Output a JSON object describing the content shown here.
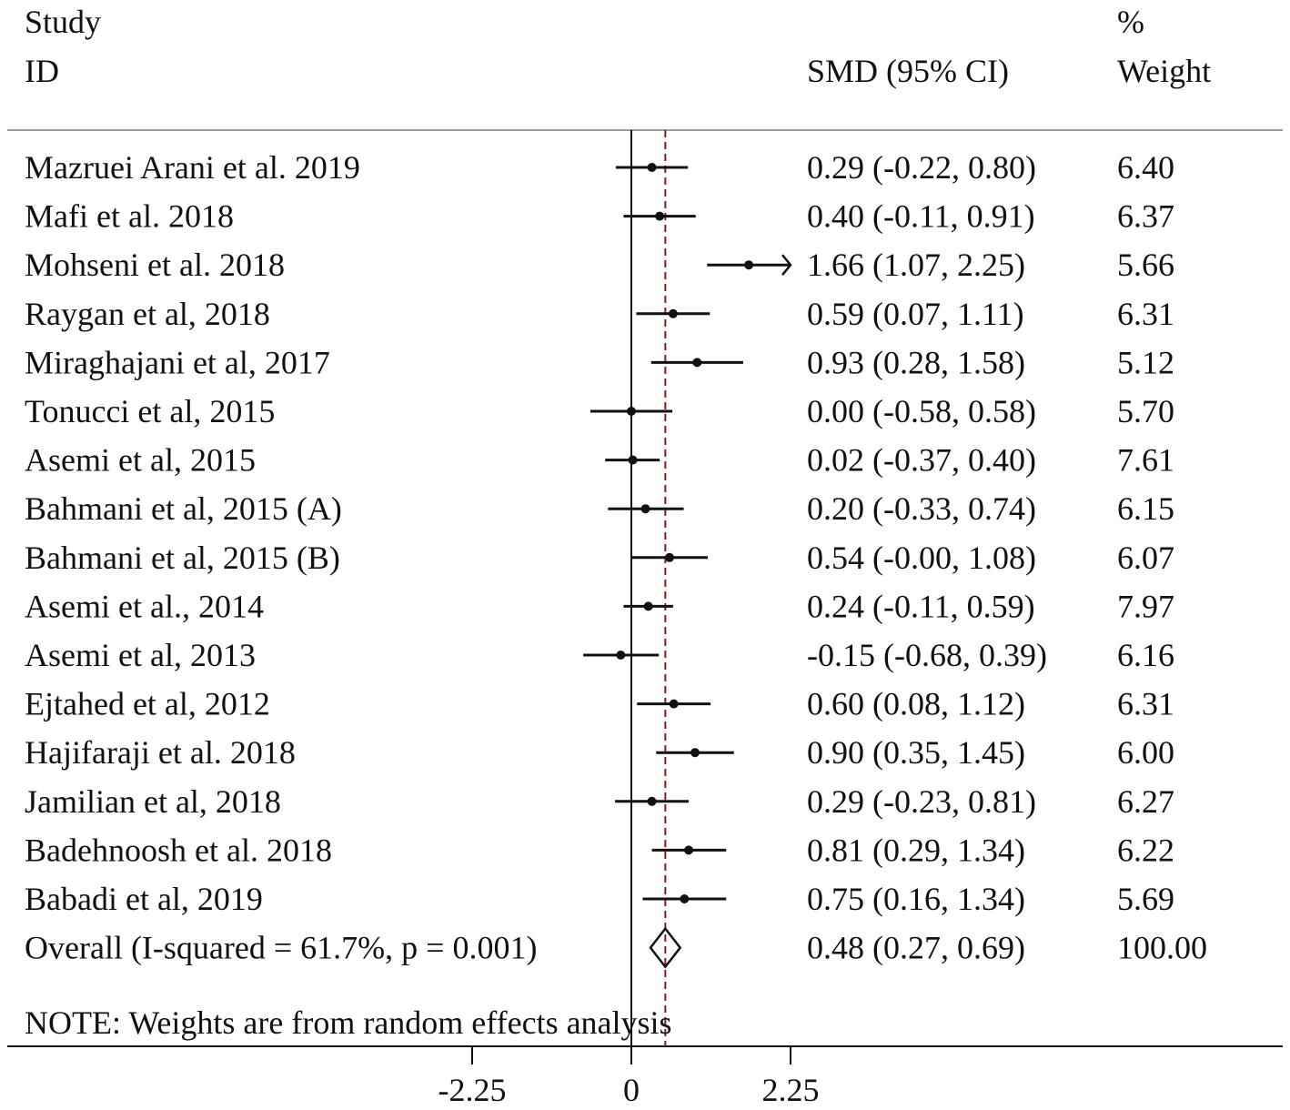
{
  "header": {
    "study_line1": "Study",
    "study_line2": "ID",
    "effect_header": "SMD (95% CI)",
    "weight_line1": "%",
    "weight_line2": "Weight"
  },
  "note": "NOTE: Weights are from random effects analysis",
  "colors": {
    "ink": "#111111",
    "reference_line": "#8b1a1a",
    "rule": "#999999"
  },
  "chart_data": {
    "type": "forest",
    "xlabel": "",
    "ylabel": "",
    "xlim": [
      -2.25,
      2.25
    ],
    "xticks": [
      "-2.25",
      "0",
      "2.25"
    ],
    "null_line": 0,
    "overall_line": 0.48,
    "studies": [
      {
        "label": "Mazruei Arani et al. 2019",
        "smd": 0.29,
        "lower": -0.22,
        "upper": 0.8,
        "ci_text": "0.29 (-0.22, 0.80)",
        "weight": "6.40"
      },
      {
        "label": "Mafi et al. 2018",
        "smd": 0.4,
        "lower": -0.11,
        "upper": 0.91,
        "ci_text": "0.40 (-0.11, 0.91)",
        "weight": "6.37"
      },
      {
        "label": "Mohseni et al. 2018",
        "smd": 1.66,
        "lower": 1.07,
        "upper": 2.25,
        "ci_text": "1.66 (1.07, 2.25)",
        "weight": "5.66",
        "arrow_right": true
      },
      {
        "label": "Raygan et al, 2018",
        "smd": 0.59,
        "lower": 0.07,
        "upper": 1.11,
        "ci_text": "0.59 (0.07, 1.11)",
        "weight": "6.31"
      },
      {
        "label": "Miraghajani et al, 2017",
        "smd": 0.93,
        "lower": 0.28,
        "upper": 1.58,
        "ci_text": "0.93 (0.28, 1.58)",
        "weight": "5.12"
      },
      {
        "label": "Tonucci et al, 2015",
        "smd": 0.0,
        "lower": -0.58,
        "upper": 0.58,
        "ci_text": "0.00 (-0.58, 0.58)",
        "weight": "5.70"
      },
      {
        "label": "Asemi et al, 2015",
        "smd": 0.02,
        "lower": -0.37,
        "upper": 0.4,
        "ci_text": "0.02 (-0.37, 0.40)",
        "weight": "7.61"
      },
      {
        "label": "Bahmani et al, 2015 (A)",
        "smd": 0.2,
        "lower": -0.33,
        "upper": 0.74,
        "ci_text": "0.20 (-0.33, 0.74)",
        "weight": "6.15"
      },
      {
        "label": "Bahmani et al, 2015 (B)",
        "smd": 0.54,
        "lower": -0.0,
        "upper": 1.08,
        "ci_text": "0.54 (-0.00, 1.08)",
        "weight": "6.07"
      },
      {
        "label": "Asemi et al., 2014",
        "smd": 0.24,
        "lower": -0.11,
        "upper": 0.59,
        "ci_text": "0.24 (-0.11, 0.59)",
        "weight": "7.97"
      },
      {
        "label": "Asemi et al, 2013",
        "smd": -0.15,
        "lower": -0.68,
        "upper": 0.39,
        "ci_text": "-0.15 (-0.68, 0.39)",
        "weight": "6.16"
      },
      {
        "label": "Ejtahed et al, 2012",
        "smd": 0.6,
        "lower": 0.08,
        "upper": 1.12,
        "ci_text": "0.60 (0.08, 1.12)",
        "weight": "6.31"
      },
      {
        "label": "Hajifaraji et al. 2018",
        "smd": 0.9,
        "lower": 0.35,
        "upper": 1.45,
        "ci_text": "0.90 (0.35, 1.45)",
        "weight": "6.00"
      },
      {
        "label": "Jamilian et al, 2018",
        "smd": 0.29,
        "lower": -0.23,
        "upper": 0.81,
        "ci_text": "0.29 (-0.23, 0.81)",
        "weight": "6.27"
      },
      {
        "label": "Badehnoosh et al. 2018",
        "smd": 0.81,
        "lower": 0.29,
        "upper": 1.34,
        "ci_text": "0.81 (0.29, 1.34)",
        "weight": "6.22"
      },
      {
        "label": "Babadi et al, 2019",
        "smd": 0.75,
        "lower": 0.16,
        "upper": 1.34,
        "ci_text": "0.75 (0.16, 1.34)",
        "weight": "5.69"
      }
    ],
    "overall": {
      "label": "Overall  (I-squared = 61.7%, p = 0.001)",
      "smd": 0.48,
      "lower": 0.27,
      "upper": 0.69,
      "ci_text": "0.48 (0.27, 0.69)",
      "weight": "100.00"
    }
  }
}
